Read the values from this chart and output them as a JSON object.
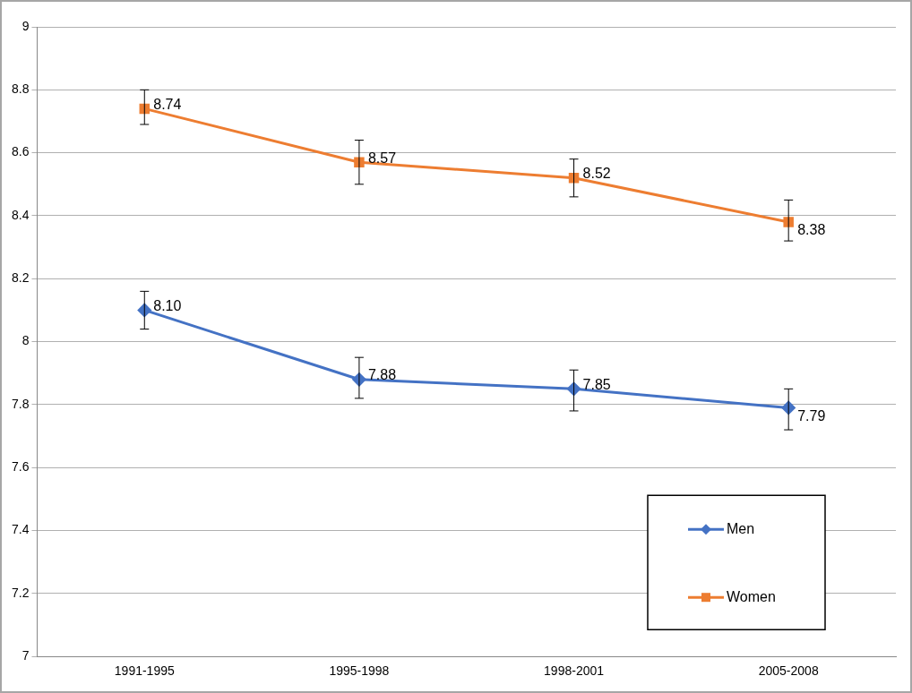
{
  "chart_data": {
    "type": "line",
    "categories": [
      "1991-1995",
      "1995-1998",
      "1998-2001",
      "2005-2008"
    ],
    "series": [
      {
        "name": "Men",
        "color": "#4472c4",
        "marker": "diamond",
        "values": [
          8.1,
          7.88,
          7.85,
          7.79
        ],
        "errors": [
          [
            8.04,
            8.16
          ],
          [
            7.82,
            7.95
          ],
          [
            7.78,
            7.91
          ],
          [
            7.72,
            7.85
          ]
        ]
      },
      {
        "name": "Women",
        "color": "#ed7d31",
        "marker": "square",
        "values": [
          8.74,
          8.57,
          8.52,
          8.38
        ],
        "errors": [
          [
            8.69,
            8.8
          ],
          [
            8.5,
            8.64
          ],
          [
            8.46,
            8.58
          ],
          [
            8.32,
            8.45
          ]
        ]
      }
    ],
    "ylim": [
      7,
      9
    ],
    "yticks": [
      7,
      7.2,
      7.4,
      7.6,
      7.8,
      8,
      8.2,
      8.4,
      8.6,
      8.8,
      9
    ],
    "value_labels": [
      [
        "8.10",
        "7.88",
        "7.85",
        "7.79"
      ],
      [
        "8.74",
        "8.57",
        "8.52",
        "8.38"
      ]
    ],
    "grid": "y",
    "legend": "bottom right",
    "line_style": "solid"
  }
}
